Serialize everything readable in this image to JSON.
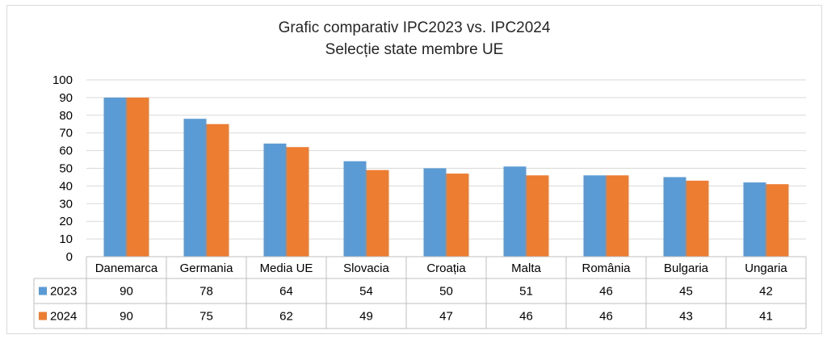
{
  "chart_data": {
    "type": "bar",
    "title": "Grafic comparativ IPC2023 vs. IPC2024",
    "subtitle": "Selecție state membre UE",
    "categories": [
      "Danemarca",
      "Germania",
      "Media UE",
      "Slovacia",
      "Croația",
      "Malta",
      "România",
      "Bulgaria",
      "Ungaria"
    ],
    "series": [
      {
        "name": "2023",
        "values": [
          90,
          78,
          64,
          54,
          50,
          51,
          46,
          45,
          42
        ],
        "color": "#5b9bd5"
      },
      {
        "name": "2024",
        "values": [
          90,
          75,
          62,
          49,
          47,
          46,
          46,
          43,
          41
        ],
        "color": "#ed7d31"
      }
    ],
    "ylim": [
      0,
      100
    ],
    "yticks": [
      0,
      10,
      20,
      30,
      40,
      50,
      60,
      70,
      80,
      90,
      100
    ],
    "grid": true,
    "legend": "data-table",
    "data_table": true,
    "colors": {
      "gridline": "#d9d9d9",
      "table_border": "#bfbfbf"
    }
  }
}
